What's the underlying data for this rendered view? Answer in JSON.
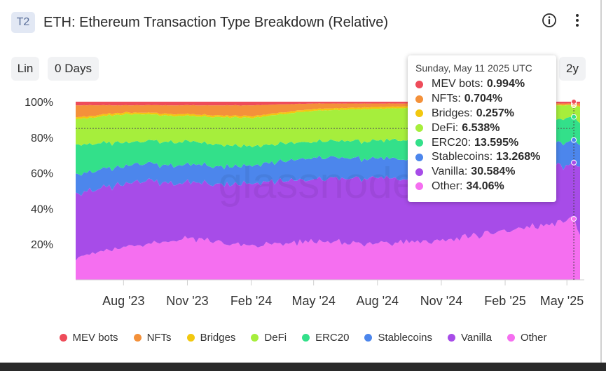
{
  "header": {
    "badge": "T2",
    "title": "ETH: Ethereum Transaction Type Breakdown (Relative)"
  },
  "controls": {
    "scale": "Lin",
    "days": "0 Days",
    "range": "2y"
  },
  "icons": {
    "info": "info-circle-icon",
    "more": "more-vertical-icon"
  },
  "watermark": "glassnode",
  "tooltip": {
    "date": "Sunday, May 11 2025 UTC",
    "rows": [
      {
        "label": "MEV bots:",
        "value": "0.994%",
        "color": "#ee4c5a"
      },
      {
        "label": "NFTs:",
        "value": "0.704%",
        "color": "#f4913a"
      },
      {
        "label": "Bridges:",
        "value": "0.257%",
        "color": "#f2c80f"
      },
      {
        "label": "DeFi:",
        "value": "6.538%",
        "color": "#a6ee3c"
      },
      {
        "label": "ERC20:",
        "value": "13.595%",
        "color": "#33e08a"
      },
      {
        "label": "Stablecoins:",
        "value": "13.268%",
        "color": "#4c86ec"
      },
      {
        "label": "Vanilla:",
        "value": "30.584%",
        "color": "#a74ce8"
      },
      {
        "label": "Other:",
        "value": "34.06%",
        "color": "#f56ff0"
      }
    ]
  },
  "chart_data": {
    "type": "area",
    "stacked": true,
    "title": "ETH: Ethereum Transaction Type Breakdown (Relative)",
    "ylim": [
      0,
      100
    ],
    "y_ticks": [
      "20%",
      "40%",
      "60%",
      "80%",
      "100%"
    ],
    "x_ticks": [
      "Aug '23",
      "Nov '23",
      "Feb '24",
      "May '24",
      "Aug '24",
      "Nov '24",
      "Feb '25",
      "May '25"
    ],
    "x_range": [
      "2023-05-24",
      "2025-05-20"
    ],
    "x": [
      "2023-05-24",
      "2023-08-01",
      "2023-11-01",
      "2024-02-01",
      "2024-05-01",
      "2024-08-01",
      "2024-11-01",
      "2025-02-01",
      "2025-05-11",
      "2025-05-20"
    ],
    "series": [
      {
        "name": "Other",
        "color": "#f56ff0",
        "values": [
          12,
          18,
          23,
          19,
          22,
          20,
          22,
          27,
          34.06,
          27
        ]
      },
      {
        "name": "Vanilla",
        "color": "#a74ce8",
        "values": [
          36,
          36,
          32,
          35,
          35,
          37,
          34,
          34,
          30.584,
          37
        ]
      },
      {
        "name": "Stablecoins",
        "color": "#4c86ec",
        "values": [
          11,
          10,
          10,
          10,
          12,
          11,
          11,
          11,
          13.268,
          12
        ]
      },
      {
        "name": "ERC20",
        "color": "#33e08a",
        "values": [
          17,
          13,
          13,
          11,
          9,
          10,
          12,
          11,
          13.595,
          12
        ]
      },
      {
        "name": "DeFi",
        "color": "#a6ee3c",
        "values": [
          14,
          16,
          14,
          16,
          17,
          18,
          18,
          14,
          6.538,
          9
        ]
      },
      {
        "name": "Bridges",
        "color": "#f2c80f",
        "values": [
          1,
          1,
          1,
          1,
          1,
          1,
          1,
          1,
          0.257,
          0.5
        ]
      },
      {
        "name": "NFTs",
        "color": "#f4913a",
        "values": [
          7,
          4,
          5,
          6,
          3,
          2,
          1,
          1,
          0.704,
          1.5
        ]
      },
      {
        "name": "MEV bots",
        "color": "#ee4c5a",
        "values": [
          2,
          2,
          2,
          2,
          1,
          1,
          1,
          1,
          0.994,
          1
        ]
      }
    ],
    "highlight": {
      "x": "2025-05-11",
      "y": 85
    },
    "grid": false,
    "legend": "bottom"
  },
  "legend": [
    {
      "label": "MEV bots",
      "color": "#ee4c5a"
    },
    {
      "label": "NFTs",
      "color": "#f4913a"
    },
    {
      "label": "Bridges",
      "color": "#f2c80f"
    },
    {
      "label": "DeFi",
      "color": "#a6ee3c"
    },
    {
      "label": "ERC20",
      "color": "#33e08a"
    },
    {
      "label": "Stablecoins",
      "color": "#4c86ec"
    },
    {
      "label": "Vanilla",
      "color": "#a74ce8"
    },
    {
      "label": "Other",
      "color": "#f56ff0"
    }
  ]
}
